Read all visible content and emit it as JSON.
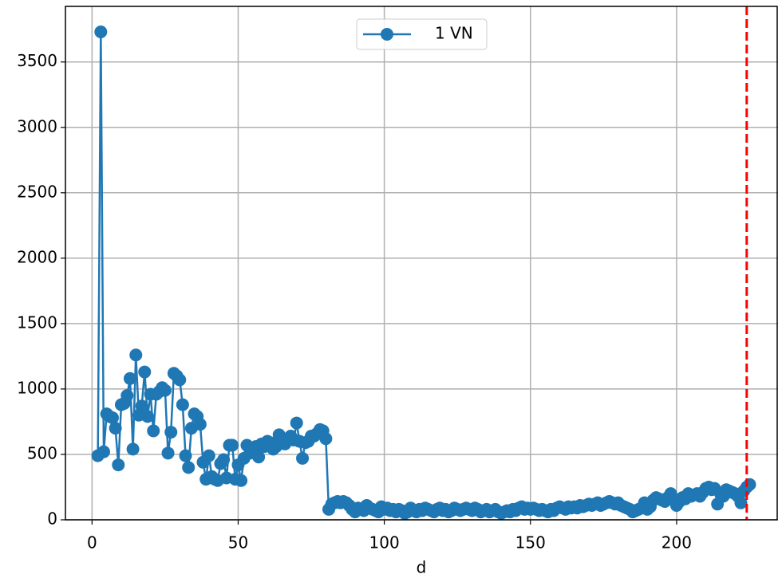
{
  "chart_data": {
    "type": "line",
    "xlabel": "d",
    "legend": "upper center",
    "grid": true,
    "xlim": [
      -9.1,
      234.7
    ],
    "ylim": [
      0,
      3925
    ],
    "xticks": [
      0,
      50,
      100,
      150,
      200
    ],
    "yticks": [
      0,
      500,
      1000,
      1500,
      2000,
      2500,
      3000,
      3500
    ],
    "vline": {
      "x": 224,
      "color": "#ff0000"
    },
    "x": [
      2,
      3,
      4,
      5,
      6,
      7,
      8,
      9,
      10,
      11,
      12,
      13,
      14,
      15,
      16,
      17,
      18,
      19,
      20,
      21,
      22,
      23,
      24,
      25,
      26,
      27,
      28,
      29,
      30,
      31,
      32,
      33,
      34,
      35,
      36,
      37,
      38,
      39,
      40,
      41,
      42,
      43,
      44,
      45,
      46,
      47,
      48,
      49,
      50,
      51,
      52,
      53,
      54,
      55,
      56,
      57,
      58,
      59,
      60,
      61,
      62,
      63,
      64,
      65,
      66,
      67,
      68,
      69,
      70,
      71,
      72,
      73,
      74,
      75,
      76,
      77,
      78,
      79,
      80,
      81,
      82,
      83,
      84,
      85,
      86,
      87,
      88,
      89,
      90,
      91,
      92,
      93,
      94,
      95,
      96,
      97,
      98,
      99,
      100,
      101,
      102,
      103,
      104,
      105,
      106,
      107,
      108,
      109,
      110,
      111,
      112,
      113,
      114,
      115,
      116,
      117,
      118,
      119,
      120,
      121,
      122,
      123,
      124,
      125,
      126,
      127,
      128,
      129,
      130,
      131,
      132,
      133,
      134,
      135,
      136,
      137,
      138,
      139,
      140,
      141,
      142,
      143,
      144,
      145,
      146,
      147,
      148,
      149,
      150,
      151,
      152,
      153,
      154,
      155,
      156,
      157,
      158,
      159,
      160,
      161,
      162,
      163,
      164,
      165,
      166,
      167,
      168,
      169,
      170,
      171,
      172,
      173,
      174,
      175,
      176,
      177,
      178,
      179,
      180,
      181,
      182,
      183,
      184,
      185,
      186,
      187,
      188,
      189,
      190,
      191,
      192,
      193,
      194,
      195,
      196,
      197,
      198,
      199,
      200,
      201,
      202,
      203,
      204,
      205,
      206,
      207,
      208,
      209,
      210,
      211,
      212,
      213,
      214,
      215,
      216,
      217,
      218,
      219,
      220,
      221,
      222,
      223,
      224,
      225
    ],
    "series": [
      {
        "name": "1 VN",
        "color": "#1f77b4",
        "values": [
          490,
          3730,
          520,
          810,
          790,
          780,
          700,
          420,
          880,
          890,
          950,
          1080,
          540,
          1260,
          800,
          870,
          1130,
          790,
          960,
          680,
          960,
          980,
          1010,
          990,
          510,
          670,
          1120,
          1100,
          1070,
          880,
          490,
          400,
          700,
          810,
          790,
          730,
          440,
          310,
          490,
          330,
          310,
          300,
          430,
          460,
          320,
          570,
          570,
          310,
          420,
          300,
          470,
          570,
          510,
          530,
          560,
          480,
          580,
          560,
          600,
          590,
          540,
          560,
          650,
          600,
          580,
          620,
          640,
          610,
          740,
          600,
          470,
          590,
          600,
          640,
          640,
          660,
          690,
          680,
          620,
          80,
          120,
          130,
          140,
          130,
          140,
          130,
          110,
          80,
          60,
          90,
          80,
          70,
          110,
          90,
          80,
          70,
          60,
          100,
          80,
          90,
          70,
          80,
          60,
          80,
          70,
          50,
          60,
          90,
          70,
          60,
          80,
          70,
          90,
          80,
          70,
          60,
          80,
          90,
          70,
          80,
          60,
          70,
          90,
          80,
          70,
          80,
          90,
          80,
          70,
          90,
          80,
          60,
          70,
          80,
          60,
          70,
          80,
          60,
          50,
          60,
          70,
          60,
          80,
          70,
          90,
          100,
          80,
          90,
          80,
          90,
          80,
          70,
          80,
          70,
          60,
          80,
          70,
          90,
          100,
          90,
          80,
          100,
          90,
          100,
          90,
          110,
          100,
          110,
          120,
          110,
          120,
          130,
          110,
          120,
          130,
          140,
          130,
          120,
          130,
          110,
          100,
          90,
          80,
          60,
          70,
          80,
          90,
          130,
          80,
          100,
          150,
          170,
          160,
          150,
          140,
          170,
          200,
          160,
          110,
          140,
          170,
          160,
          200,
          180,
          190,
          200,
          180,
          210,
          240,
          250,
          230,
          240,
          120,
          200,
          180,
          230,
          220,
          210,
          200,
          180,
          130,
          220,
          250,
          270
        ]
      }
    ]
  }
}
